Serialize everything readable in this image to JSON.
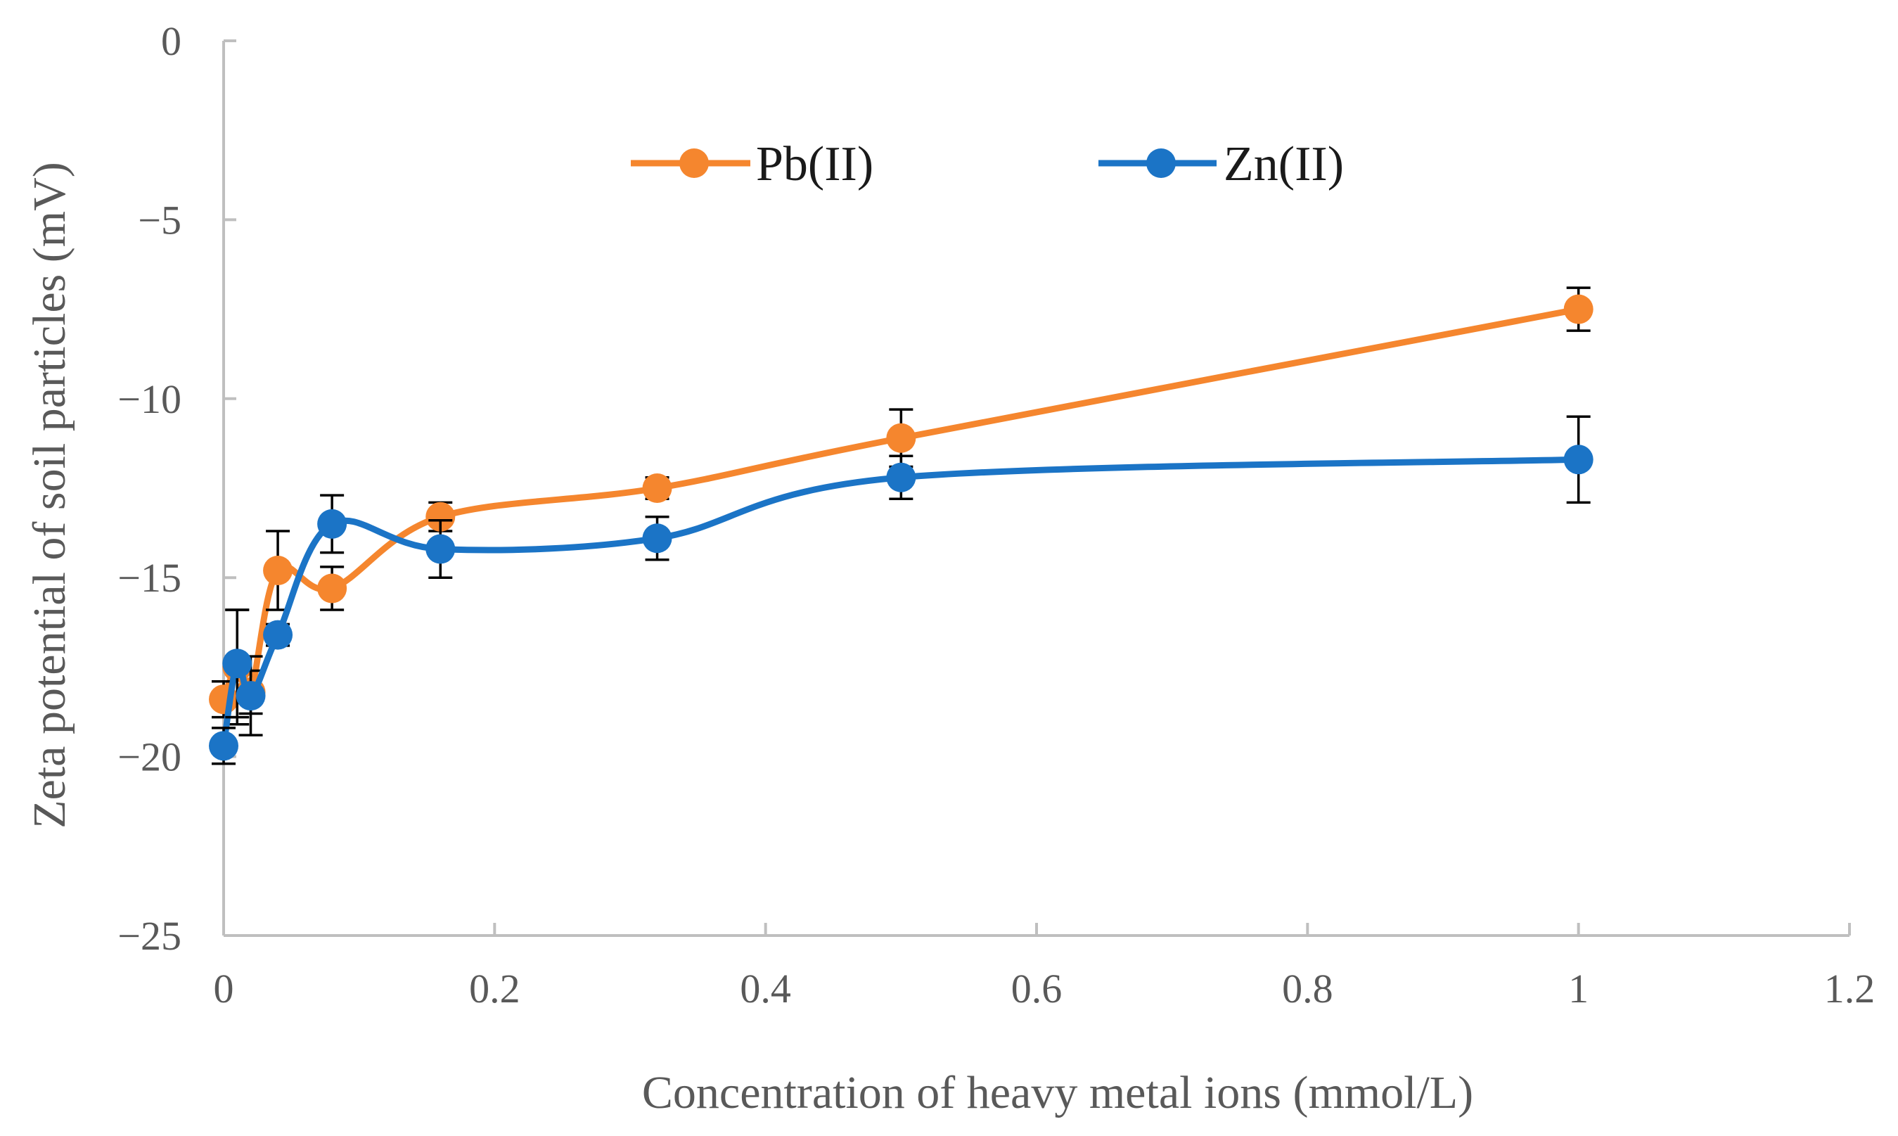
{
  "chart_data": {
    "type": "line",
    "title": "",
    "xlabel": "Concentration of heavy metal ions (mmol/L)",
    "ylabel": "Zeta potential of soil particles (mV)",
    "xlim": [
      0,
      1.2
    ],
    "ylim": [
      -25,
      0
    ],
    "xticks": [
      0,
      0.2,
      0.4,
      0.6,
      0.8,
      1,
      1.2
    ],
    "yticks": [
      0,
      -5,
      -10,
      -15,
      -20,
      -25
    ],
    "xtick_labels": [
      "0",
      "0.2",
      "0.4",
      "0.6",
      "0.8",
      "1",
      "1.2"
    ],
    "ytick_labels": [
      "0",
      "−5",
      "−10",
      "−15",
      "−20",
      "−25"
    ],
    "grid": false,
    "legend_position": "top-center",
    "series": [
      {
        "name": "Pb(II)",
        "color": "#f5862e",
        "x": [
          0,
          0.01,
          0.02,
          0.04,
          0.08,
          0.16,
          0.32,
          0.5,
          1
        ],
        "y": [
          -18.4,
          -17.5,
          -18.2,
          -14.8,
          -15.3,
          -13.3,
          -12.5,
          -11.1,
          -7.5
        ],
        "err": [
          0.5,
          1.6,
          0.6,
          1.1,
          0.6,
          0.4,
          0.3,
          0.8,
          0.6
        ]
      },
      {
        "name": "Zn(II)",
        "color": "#1b74c6",
        "x": [
          0,
          0.01,
          0.02,
          0.04,
          0.08,
          0.16,
          0.32,
          0.5,
          1
        ],
        "y": [
          -19.7,
          -17.4,
          -18.3,
          -16.6,
          -13.5,
          -14.2,
          -13.9,
          -12.2,
          -11.7
        ],
        "err": [
          0.5,
          1.5,
          1.1,
          0.3,
          0.8,
          0.8,
          0.6,
          0.6,
          1.2
        ]
      }
    ]
  }
}
